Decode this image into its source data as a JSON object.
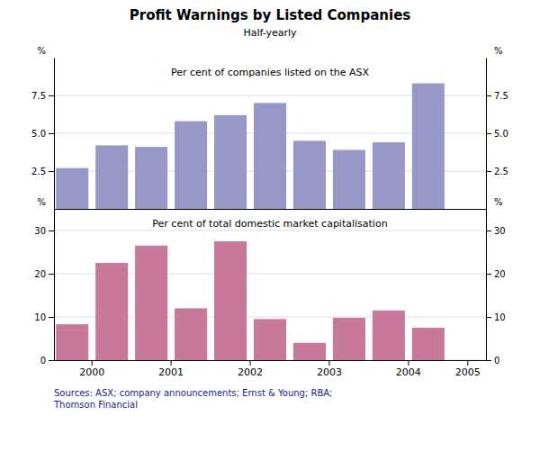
{
  "chart_data": [
    {
      "type": "bar",
      "title": "Profit Warnings by Listed Companies",
      "subtitle": "Half-yearly",
      "annotations": [
        "Per cent of companies listed on the ASX"
      ],
      "ylabel": "%",
      "y2label": "%",
      "categories": [
        "2000",
        null,
        "2001",
        null,
        "2002",
        null,
        "2003",
        null,
        "2004",
        null,
        "2005"
      ],
      "values": [
        2.7,
        4.2,
        4.1,
        5.8,
        6.2,
        7.0,
        4.5,
        3.9,
        4.4,
        8.3,
        null
      ],
      "color": "#9898c8",
      "ylim": [
        0,
        10
      ],
      "yticks": [
        2.5,
        {
          "value": 5.0,
          "label": "5.0"
        },
        7.5
      ],
      "y2lim": [
        0,
        10
      ],
      "y2ticks": [
        2.5,
        {
          "value": 5.0,
          "label": "5.0"
        },
        7.5
      ],
      "grid": true,
      "tick_labels": "y"
    },
    {
      "type": "bar",
      "annotations": [
        "Per cent of total domestic market capitalisation"
      ],
      "source": "Sources: ASX; company announcements; Ernst & Young; RBA;\nThomson Financial",
      "ylabel": "%",
      "y2label": "%",
      "categories": [
        "2000",
        null,
        "2001",
        null,
        "2002",
        null,
        "2003",
        null,
        "2004",
        null,
        "2005"
      ],
      "values": [
        8.3,
        22.5,
        26.5,
        12.0,
        27.5,
        9.5,
        4.0,
        9.8,
        11.5,
        7.5,
        null
      ],
      "color": "#c87898",
      "ylim": [
        0,
        35
      ],
      "yticks": [
        0,
        10,
        20,
        30
      ],
      "y2lim": [
        0,
        35
      ],
      "y2ticks": [
        0,
        10,
        20,
        30
      ],
      "grid": true
    }
  ]
}
